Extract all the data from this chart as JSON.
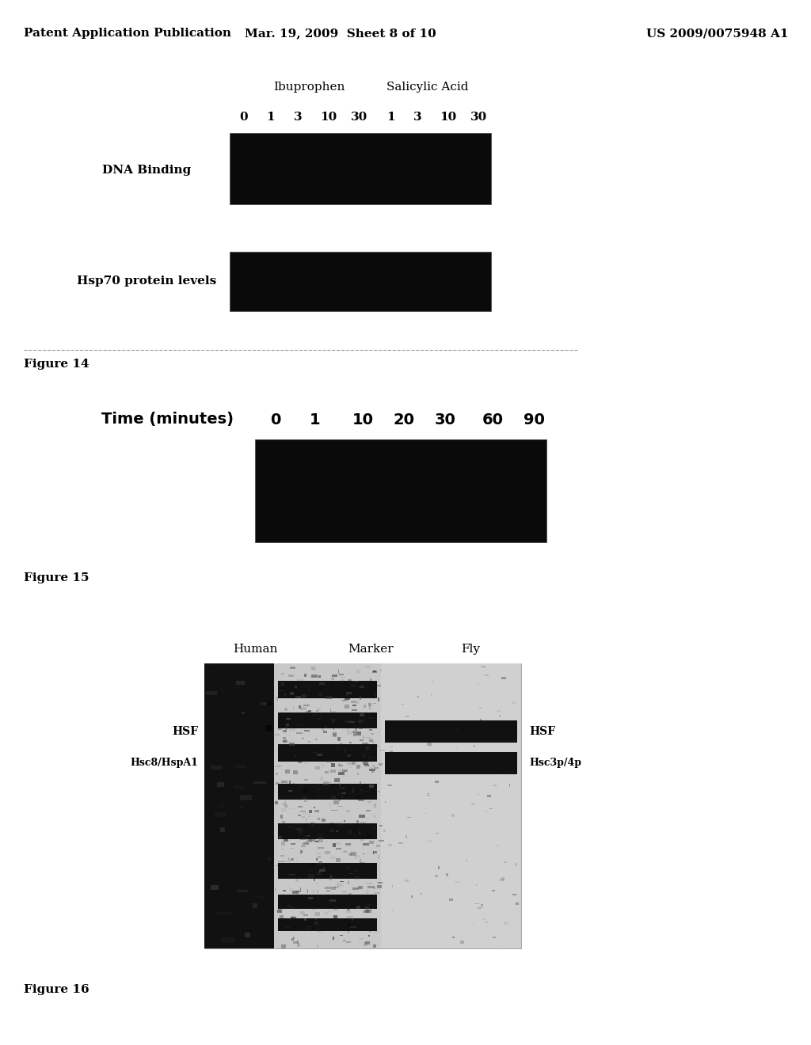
{
  "page_header_left": "Patent Application Publication",
  "page_header_mid": "Mar. 19, 2009  Sheet 8 of 10",
  "page_header_right": "US 2009/0075948 A1",
  "fig14_ibu_label": "Ibuprophen",
  "fig14_sal_label": "Salicylic Acid",
  "fig14_ibu_ticks": [
    "0",
    "1",
    "3",
    "10",
    "30"
  ],
  "fig14_sal_ticks": [
    "1",
    "3",
    "10",
    "30"
  ],
  "fig14_dna_label": "DNA Binding",
  "fig14_hsp_label": "Hsp70 protein levels",
  "fig14_caption": "Figure 14",
  "fig15_time_label": "Time (minutes)",
  "fig15_ticks": [
    "0",
    "1",
    "10",
    "20",
    "30",
    "60",
    "90"
  ],
  "fig15_caption": "Figure 15",
  "fig16_human_label": "Human",
  "fig16_marker_label": "Marker",
  "fig16_fly_label": "Fly",
  "fig16_left_hsf": "HSF",
  "fig16_left_hsc": "Hsc8/HspA1",
  "fig16_right_hsf": "HSF",
  "fig16_right_hsc": "Hsc3p/4p",
  "fig16_caption": "Figure 16",
  "bg_color": "#ffffff",
  "gel_black": "#0a0a0a"
}
